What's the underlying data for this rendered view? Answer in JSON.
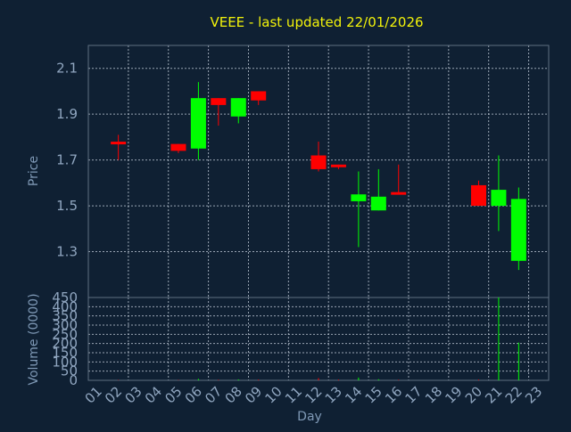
{
  "chart_data": [
    {
      "type": "candlestick",
      "title": "VEEE - last updated 22/01/2026",
      "ylabel": "Price",
      "ylim": [
        1.1,
        2.2
      ],
      "yticks": [
        "1.3",
        "1.5",
        "1.7",
        "1.9",
        "2.1"
      ],
      "colors": {
        "up": "#00ff00",
        "down": "#ff0000"
      },
      "candles": [
        {
          "day": "02",
          "open": 1.78,
          "high": 1.81,
          "low": 1.7,
          "close": 1.77
        },
        {
          "day": "05",
          "open": 1.77,
          "high": 1.77,
          "low": 1.73,
          "close": 1.74
        },
        {
          "day": "06",
          "open": 1.75,
          "high": 2.04,
          "low": 1.7,
          "close": 1.97
        },
        {
          "day": "07",
          "open": 1.97,
          "high": 1.97,
          "low": 1.85,
          "close": 1.94
        },
        {
          "day": "08",
          "open": 1.89,
          "high": 1.97,
          "low": 1.86,
          "close": 1.97
        },
        {
          "day": "09",
          "open": 2.0,
          "high": 2.0,
          "low": 1.94,
          "close": 1.96
        },
        {
          "day": "12",
          "open": 1.72,
          "high": 1.78,
          "low": 1.65,
          "close": 1.66
        },
        {
          "day": "13",
          "open": 1.68,
          "high": 1.68,
          "low": 1.66,
          "close": 1.67
        },
        {
          "day": "14",
          "open": 1.52,
          "high": 1.65,
          "low": 1.32,
          "close": 1.55
        },
        {
          "day": "15",
          "open": 1.48,
          "high": 1.66,
          "low": 1.48,
          "close": 1.54
        },
        {
          "day": "16",
          "open": 1.56,
          "high": 1.68,
          "low": 1.55,
          "close": 1.55
        },
        {
          "day": "20",
          "open": 1.59,
          "high": 1.61,
          "low": 1.5,
          "close": 1.5
        },
        {
          "day": "21",
          "open": 1.5,
          "high": 1.72,
          "low": 1.39,
          "close": 1.57
        },
        {
          "day": "22",
          "open": 1.26,
          "high": 1.58,
          "low": 1.22,
          "close": 1.53
        }
      ]
    },
    {
      "type": "bar",
      "ylabel": "Volume (0000)",
      "xlabel": "Day",
      "ylim": [
        0,
        450
      ],
      "yticks": [
        "0",
        "50",
        "100",
        "150",
        "200",
        "250",
        "300",
        "350",
        "400",
        "450"
      ],
      "categories": [
        "01",
        "02",
        "03",
        "04",
        "05",
        "06",
        "07",
        "08",
        "09",
        "10",
        "11",
        "12",
        "13",
        "14",
        "15",
        "16",
        "17",
        "18",
        "19",
        "20",
        "21",
        "22",
        "23"
      ],
      "volume": [
        {
          "day": "02",
          "value": 2,
          "dir": "down"
        },
        {
          "day": "05",
          "value": 2,
          "dir": "down"
        },
        {
          "day": "06",
          "value": 8,
          "dir": "up"
        },
        {
          "day": "07",
          "value": 3,
          "dir": "down"
        },
        {
          "day": "08",
          "value": 5,
          "dir": "up"
        },
        {
          "day": "09",
          "value": 4,
          "dir": "down"
        },
        {
          "day": "12",
          "value": 12,
          "dir": "down"
        },
        {
          "day": "13",
          "value": 4,
          "dir": "down"
        },
        {
          "day": "14",
          "value": 15,
          "dir": "up"
        },
        {
          "day": "15",
          "value": 6,
          "dir": "up"
        },
        {
          "day": "16",
          "value": 3,
          "dir": "down"
        },
        {
          "day": "20",
          "value": 4,
          "dir": "down"
        },
        {
          "day": "21",
          "value": 450,
          "dir": "up"
        },
        {
          "day": "22",
          "value": 205,
          "dir": "up"
        }
      ]
    }
  ]
}
